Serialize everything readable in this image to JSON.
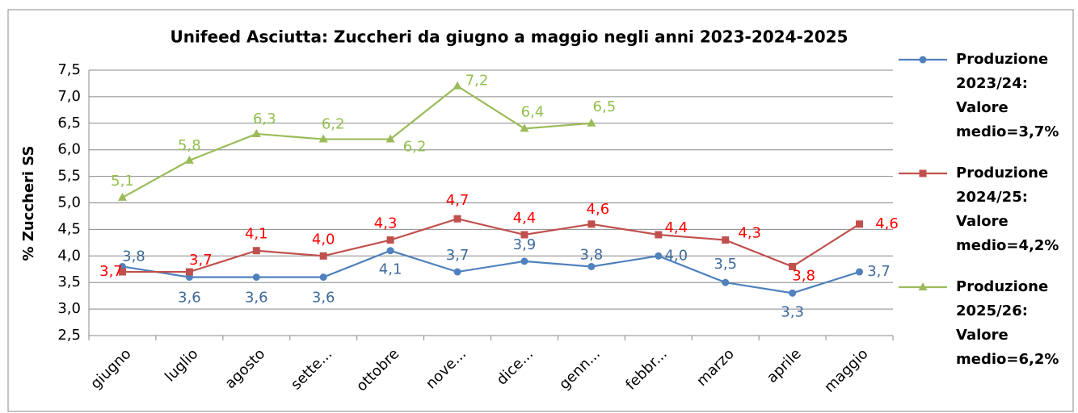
{
  "chart_data": {
    "type": "line",
    "title": "Unifeed Asciutta: Zuccheri da giugno a maggio negli anni 2023-2024-2025",
    "y_label": "% Zuccheri SS",
    "categories": [
      "giugno",
      "luglio",
      "agosto",
      "sette...",
      "ottobre",
      "nove...",
      "dice...",
      "genn...",
      "febbr...",
      "marzo",
      "aprile",
      "maggio"
    ],
    "ylim": [
      2.5,
      7.5
    ],
    "yticks": [
      {
        "value": 2.5,
        "label": "2,5"
      },
      {
        "value": 3,
        "label": "3,0"
      },
      {
        "value": 3.5,
        "label": "3,5"
      },
      {
        "value": 4,
        "label": "4,0"
      },
      {
        "value": 4.5,
        "label": "4,5"
      },
      {
        "value": 5,
        "label": "5,0"
      },
      {
        "value": 5.5,
        "label": "5,5"
      },
      {
        "value": 6,
        "label": "6,0"
      },
      {
        "value": 6.5,
        "label": "6,5"
      },
      {
        "value": 7,
        "label": "7,0"
      },
      {
        "value": 7.5,
        "label": "7,5"
      }
    ],
    "grid": true,
    "legend": "right",
    "series": [
      {
        "name": "Produzione 2023/24: Valore medio=3,7%",
        "color": "#4f81bd",
        "label_color": "#3e6a9a",
        "marker": "circle",
        "values": [
          3.8,
          3.6,
          3.6,
          3.6,
          4.1,
          3.7,
          3.9,
          3.8,
          4.0,
          3.5,
          3.3,
          3.7
        ],
        "value_labels": [
          "3,8",
          "3,6",
          "3,6",
          "3,6",
          "4,1",
          "3,7",
          "3,9",
          "3,8",
          "4,0",
          "3,5",
          "3,3",
          "3,7"
        ]
      },
      {
        "name": "Produzione 2024/25: Valore medio=4,2%",
        "color": "#c0504d",
        "label_color": "#ff0000",
        "marker": "square",
        "values": [
          3.7,
          3.7,
          4.1,
          4.0,
          4.3,
          4.7,
          4.4,
          4.6,
          4.4,
          4.3,
          3.8,
          4.6
        ],
        "value_labels": [
          "3,7",
          "3,7",
          "4,1",
          "4,0",
          "4,3",
          "4,7",
          "4,4",
          "4,6",
          "4,4",
          "4,3",
          "3,8",
          "4,6"
        ]
      },
      {
        "name": "Produzione 2025/26: Valore medio=6,2%",
        "color": "#9bbb59",
        "label_color": "#92c050",
        "marker": "triangle",
        "values": [
          5.1,
          5.8,
          6.3,
          6.2,
          6.2,
          7.2,
          6.4,
          6.5,
          null,
          null,
          null,
          null
        ],
        "value_labels": [
          "5,1",
          "5,8",
          "6,3",
          "6,2",
          "6,2",
          "7,2",
          "6,4",
          "6,5",
          null,
          null,
          null,
          null
        ]
      }
    ]
  }
}
